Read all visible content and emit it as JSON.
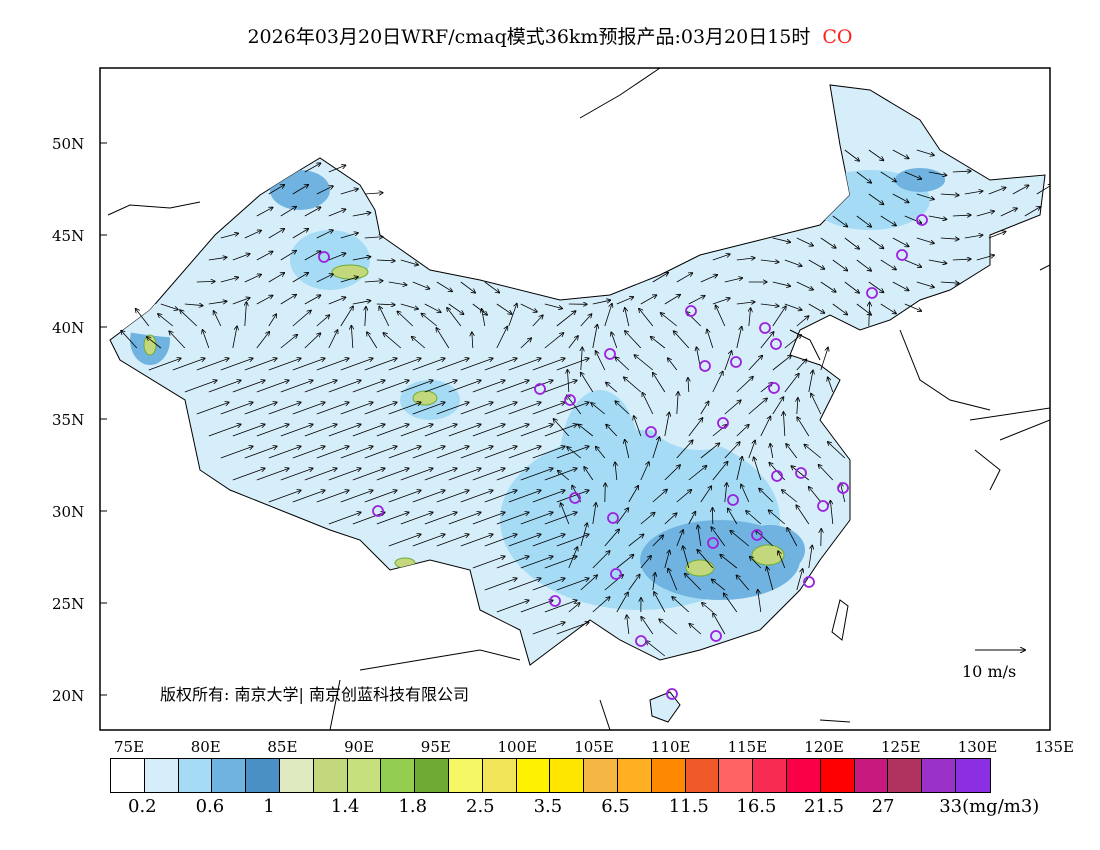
{
  "title": {
    "main": "2026年03月20日WRF/cmaq模式36km预报产品:03月20日15时",
    "species": "CO"
  },
  "lat_labels": [
    "50N",
    "45N",
    "40N",
    "35N",
    "30N",
    "25N",
    "20N"
  ],
  "lon_labels": [
    "75E",
    "80E",
    "85E",
    "90E",
    "95E",
    "100E",
    "105E",
    "110E",
    "115E",
    "120E",
    "125E",
    "130E",
    "135E"
  ],
  "colorbar": {
    "colors": [
      "#ffffff",
      "#d6eefa",
      "#a5dbf5",
      "#70b3e0",
      "#4a90c4",
      "#e0eac0",
      "#c3d77c",
      "#c5e07c",
      "#94ce50",
      "#6fab34",
      "#f5f764",
      "#f3e55a",
      "#fff200",
      "#ffe600",
      "#f6b644",
      "#feb022",
      "#fe8800",
      "#f05a2a",
      "#ff6464",
      "#f82c52",
      "#fa0046",
      "#ff0000",
      "#c8197f",
      "#b0325f",
      "#9b32c8",
      "#8c2ee1"
    ],
    "labels": [
      "0.2",
      "0.6",
      "1",
      "1.4",
      "1.8",
      "2.5",
      "3.5",
      "6.5",
      "11.5",
      "16.5",
      "21.5",
      "27",
      "33(mg/m3)"
    ]
  },
  "copyright": "版权所有: 南京大学| 南京创蓝科技有限公司",
  "wind_scale": "10 m/s"
}
